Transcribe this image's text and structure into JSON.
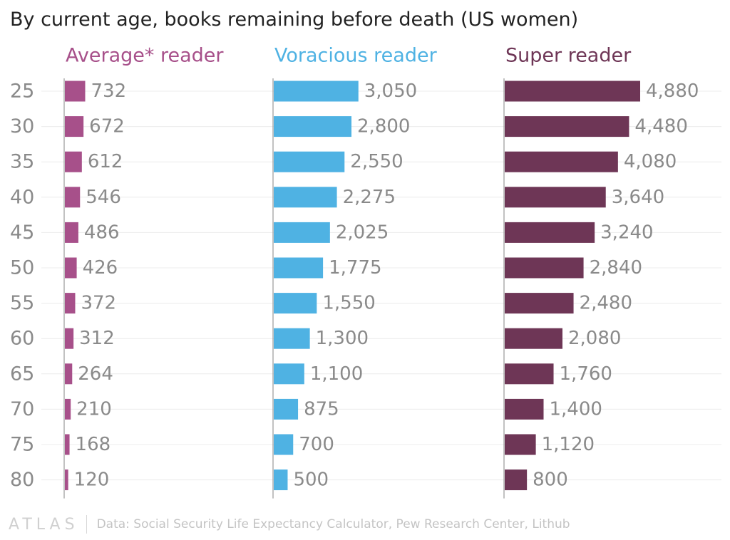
{
  "chart_data": {
    "type": "bar",
    "orientation": "horizontal",
    "title": "By current age, books remaining before death (US women)",
    "categories": [
      "25",
      "30",
      "35",
      "40",
      "45",
      "50",
      "55",
      "60",
      "65",
      "70",
      "75",
      "80"
    ],
    "series": [
      {
        "name": "Average* reader",
        "color": "#a7508a",
        "values": [
          732,
          672,
          612,
          546,
          486,
          426,
          372,
          312,
          264,
          210,
          168,
          120
        ],
        "labels": [
          "732",
          "672",
          "612",
          "546",
          "486",
          "426",
          "372",
          "312",
          "264",
          "210",
          "168",
          "120"
        ]
      },
      {
        "name": "Voracious reader",
        "color": "#4fb2e3",
        "values": [
          3050,
          2800,
          2550,
          2275,
          2025,
          1775,
          1550,
          1300,
          1100,
          875,
          700,
          500
        ],
        "labels": [
          "3,050",
          "2,800",
          "2,550",
          "2,275",
          "2,025",
          "1,775",
          "1,550",
          "1,300",
          "1,100",
          "875",
          "700",
          "500"
        ]
      },
      {
        "name": "Super reader",
        "color": "#6e3656",
        "values": [
          4880,
          4480,
          4080,
          3640,
          3240,
          2840,
          2480,
          2080,
          1760,
          1400,
          1120,
          800
        ],
        "labels": [
          "4,880",
          "4,480",
          "4,080",
          "3,640",
          "3,240",
          "2,840",
          "2,480",
          "2,080",
          "1,760",
          "1,400",
          "1,120",
          "800"
        ]
      }
    ],
    "xlim": [
      0,
      7000
    ],
    "grid": true,
    "source": "Data: Social Security Life Expectancy Calculator, Pew Research Center, Lithub",
    "logo": "ATLAS"
  }
}
